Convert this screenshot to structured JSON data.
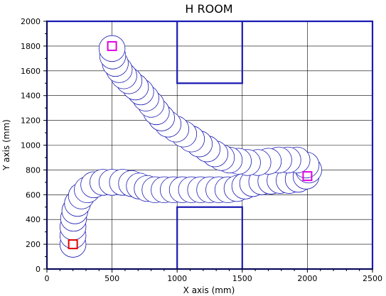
{
  "chart_data": {
    "type": "scatter",
    "title": "H ROOM",
    "xlabel": "X axis (mm)",
    "ylabel": "Y axis (mm)",
    "xlim": [
      0,
      2500
    ],
    "ylim": [
      0,
      2000
    ],
    "xticks": [
      "0",
      "500",
      "1000",
      "1500",
      "2000",
      "2500"
    ],
    "yticks": [
      "0",
      "200",
      "400",
      "600",
      "800",
      "1000",
      "1200",
      "1400",
      "1600",
      "1800",
      "2000"
    ],
    "grid": true,
    "colors": {
      "path": "#1a1ab4",
      "walls": "#1a1ab4",
      "start_marker": "#e00000",
      "goal_marker": "#e000e0"
    },
    "robot_radius_mm": 100,
    "walls": [
      {
        "x": [
          0,
          2500,
          2500,
          0,
          0
        ],
        "y": [
          0,
          0,
          2000,
          2000,
          0
        ]
      },
      {
        "x": [
          1000,
          1000,
          1500,
          1500
        ],
        "y": [
          2000,
          1500,
          1500,
          2000
        ]
      },
      {
        "x": [
          1000,
          1000,
          1500,
          1500
        ],
        "y": [
          0,
          500,
          500,
          0
        ]
      }
    ],
    "series": [
      {
        "points": [
          [
            200,
            200
          ],
          [
            200,
            270
          ],
          [
            200,
            340
          ],
          [
            205,
            410
          ],
          [
            215,
            470
          ],
          [
            235,
            530
          ],
          [
            265,
            590
          ],
          [
            310,
            640
          ],
          [
            360,
            680
          ],
          [
            430,
            700
          ],
          [
            500,
            700
          ],
          [
            580,
            700
          ],
          [
            650,
            690
          ],
          [
            710,
            670
          ],
          [
            770,
            650
          ],
          [
            830,
            640
          ],
          [
            900,
            640
          ],
          [
            970,
            640
          ],
          [
            1040,
            640
          ],
          [
            1110,
            640
          ],
          [
            1180,
            640
          ],
          [
            1250,
            640
          ],
          [
            1320,
            640
          ],
          [
            1390,
            640
          ],
          [
            1460,
            650
          ],
          [
            1520,
            670
          ],
          [
            1580,
            690
          ],
          [
            1650,
            705
          ],
          [
            1720,
            710
          ],
          [
            1790,
            715
          ],
          [
            1860,
            715
          ],
          [
            1930,
            725
          ],
          [
            1990,
            750
          ],
          [
            2010,
            800
          ],
          [
            1990,
            840
          ],
          [
            1920,
            880
          ],
          [
            1850,
            880
          ],
          [
            1780,
            880
          ],
          [
            1700,
            870
          ],
          [
            1620,
            860
          ],
          [
            1540,
            860
          ],
          [
            1470,
            870
          ],
          [
            1400,
            880
          ],
          [
            1340,
            900
          ],
          [
            1290,
            930
          ],
          [
            1230,
            970
          ],
          [
            1170,
            1010
          ],
          [
            1110,
            1050
          ],
          [
            1050,
            1090
          ],
          [
            990,
            1130
          ],
          [
            930,
            1170
          ],
          [
            880,
            1220
          ],
          [
            840,
            1270
          ],
          [
            800,
            1330
          ],
          [
            760,
            1380
          ],
          [
            720,
            1430
          ],
          [
            680,
            1470
          ],
          [
            630,
            1520
          ],
          [
            590,
            1560
          ],
          [
            555,
            1610
          ],
          [
            525,
            1660
          ],
          [
            505,
            1720
          ],
          [
            500,
            1780
          ]
        ]
      }
    ],
    "markers": [
      {
        "role": "start",
        "x": 200,
        "y": 200
      },
      {
        "role": "goal",
        "x": 500,
        "y": 1800
      },
      {
        "role": "goal",
        "x": 2000,
        "y": 750
      }
    ]
  }
}
